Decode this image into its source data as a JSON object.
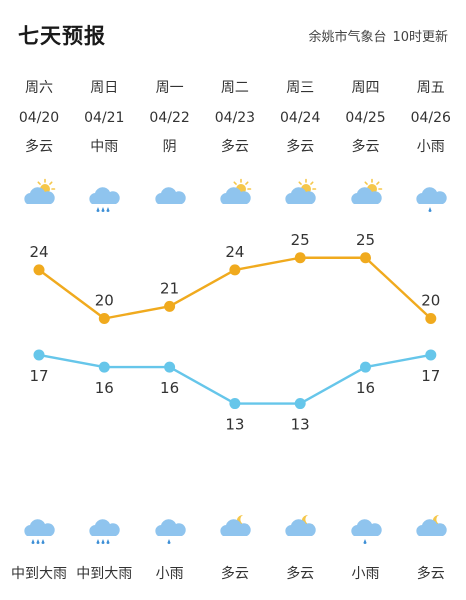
{
  "header": {
    "title": "七天预报",
    "source": "余姚市气象台",
    "update": "10时更新"
  },
  "days": [
    {
      "week": "周六",
      "date": "04/20",
      "day_weather": "多云",
      "day_icon": "partly-cloudy-icon",
      "high": 24,
      "low": 17,
      "night_icon": "moderate-heavy-rain-icon",
      "night_weather": "中到大雨"
    },
    {
      "week": "周日",
      "date": "04/21",
      "day_weather": "中雨",
      "day_icon": "moderate-rain-icon",
      "high": 20,
      "low": 16,
      "night_icon": "moderate-heavy-rain-icon",
      "night_weather": "中到大雨"
    },
    {
      "week": "周一",
      "date": "04/22",
      "day_weather": "阴",
      "day_icon": "overcast-icon",
      "high": 21,
      "low": 16,
      "night_icon": "light-rain-icon",
      "night_weather": "小雨"
    },
    {
      "week": "周二",
      "date": "04/23",
      "day_weather": "多云",
      "day_icon": "partly-cloudy-icon",
      "high": 24,
      "low": 13,
      "night_icon": "partly-cloudy-night-icon",
      "night_weather": "多云"
    },
    {
      "week": "周三",
      "date": "04/24",
      "day_weather": "多云",
      "day_icon": "partly-cloudy-icon",
      "high": 25,
      "low": 13,
      "night_icon": "partly-cloudy-night-icon",
      "night_weather": "多云"
    },
    {
      "week": "周四",
      "date": "04/25",
      "day_weather": "多云",
      "day_icon": "partly-cloudy-icon",
      "high": 25,
      "low": 16,
      "night_icon": "light-rain-icon",
      "night_weather": "小雨"
    },
    {
      "week": "周五",
      "date": "04/26",
      "day_weather": "小雨",
      "day_icon": "light-rain-icon",
      "high": 20,
      "low": 17,
      "night_icon": "partly-cloudy-night-icon",
      "night_weather": "多云"
    }
  ],
  "colors": {
    "high_line": "#f0aa1e",
    "low_line": "#66c6ea",
    "cloud": "#8fc4ee",
    "sun": "#f5c74a",
    "rain": "#3d8fd6"
  }
}
